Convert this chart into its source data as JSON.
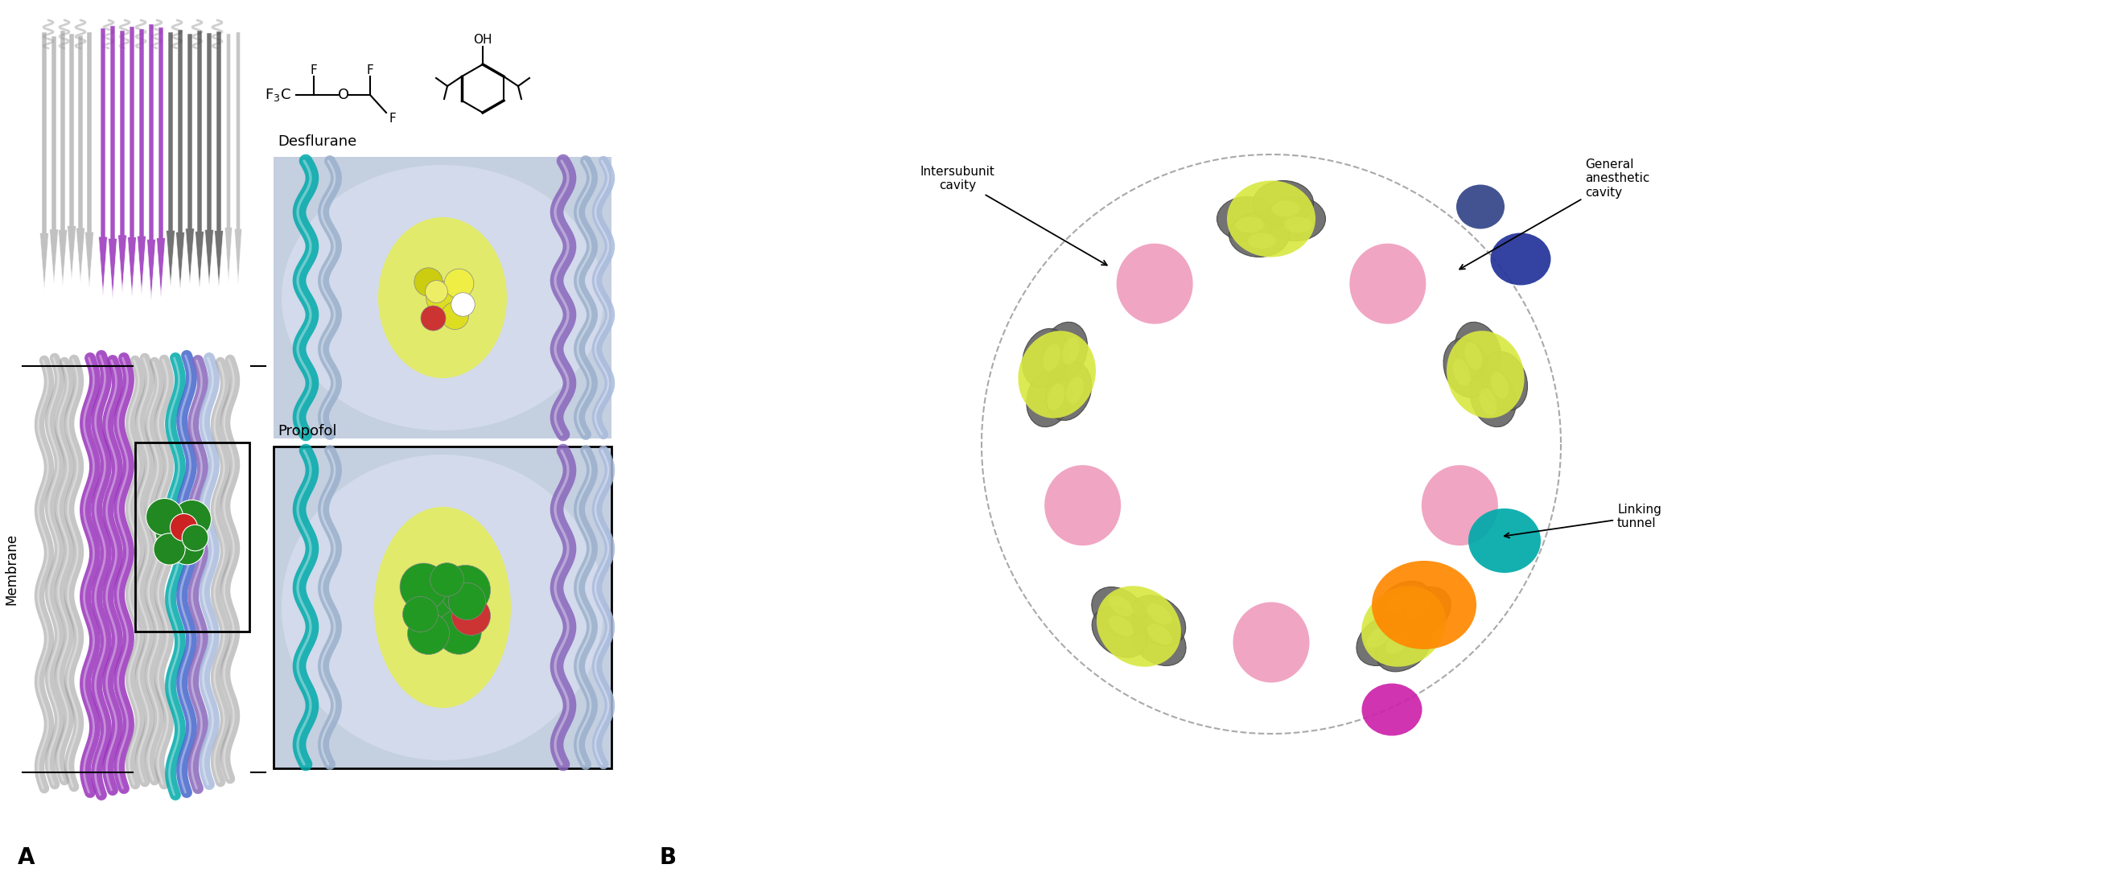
{
  "figure_width": 26.25,
  "figure_height": 11.05,
  "bg_color": "#ffffff",
  "label_A": "A",
  "label_B": "B",
  "label_fontsize": 20,
  "label_fontweight": "bold",
  "membrane_label": "Membrane",
  "membrane_label_fontsize": 12,
  "desflurane_label": "Desflurane",
  "propofol_label": "Propofol",
  "binding_label_fontsize": 13,
  "intersubunit_label": "Intersubunit\ncavity",
  "general_anesthetic_label": "General\nanesthetic\ncavity",
  "linking_tunnel_label": "Linking\ntunnel",
  "annotation_fontsize": 11,
  "protein_gray": "#a0a0a0",
  "protein_gray_dark": "#707070",
  "protein_purple": "#9933bb",
  "protein_dark": "#444444",
  "helix_teal": "#00aaaa",
  "helix_blue": "#4466cc",
  "helix_purple": "#8866bb",
  "helix_lavender": "#aabbdd",
  "molecule_green": "#228822",
  "molecule_red": "#cc2222",
  "yellow_col": "#d8e840",
  "pink_col": "#ee99bb",
  "panel_lavender": "#c4cfe0",
  "orange_col": "#ff8800",
  "teal_col": "#00aaaa",
  "magenta_col": "#cc22aa",
  "dark_blue_col": "#223399",
  "navy_col": "#334488"
}
